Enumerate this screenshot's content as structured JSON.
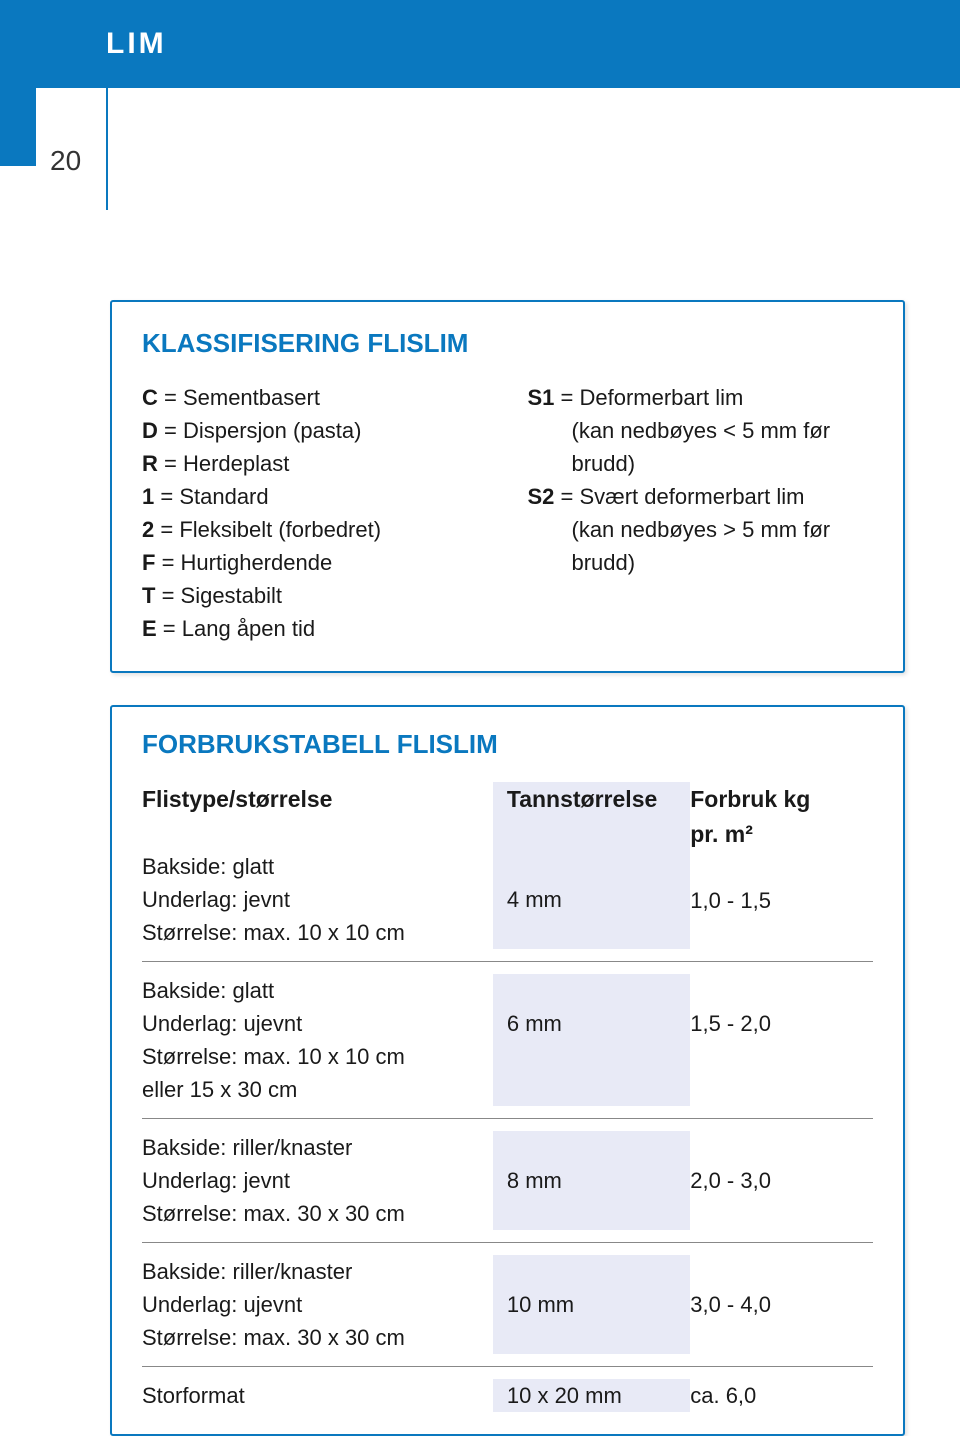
{
  "banner": {
    "title": "LIM"
  },
  "page_number": "20",
  "colors": {
    "accent": "#0a78bf",
    "band": "#e8eaf6",
    "text": "#1a1a1a"
  },
  "box1": {
    "title": "KLASSIFISERING FLISLIM",
    "left": [
      {
        "b": "C",
        "t": " = Sementbasert"
      },
      {
        "b": "D",
        "t": " = Dispersjon (pasta)"
      },
      {
        "b": "R",
        "t": " = Herdeplast"
      },
      {
        "b": "1",
        "t": " = Standard"
      },
      {
        "b": "2",
        "t": " = Fleksibelt (forbedret)"
      },
      {
        "b": "F",
        "t": " = Hurtigherdende"
      },
      {
        "b": "T",
        "t": " = Sigestabilt"
      },
      {
        "b": "E",
        "t": " = Lang åpen tid"
      }
    ],
    "right": [
      {
        "b": "S1",
        "t": " = Deformerbart lim"
      },
      {
        "indent": true,
        "t": "(kan nedbøyes < 5 mm før brudd)"
      },
      {
        "b": "S2",
        "t": " = Svært deformerbart lim"
      },
      {
        "indent": true,
        "t": "(kan nedbøyes > 5 mm før brudd)"
      }
    ]
  },
  "box2": {
    "title": "FORBRUKSTABELL FLISLIM",
    "headers": {
      "c1": "Flistype/størrelse",
      "c2": "Tannstørrelse",
      "c3a": "Forbruk kg",
      "c3b": "pr. m²"
    },
    "rows": [
      {
        "c1_lines": [
          "Bakside: glatt",
          "Underlag: jevnt",
          "Størrelse: max. 10 x 10 cm"
        ],
        "c2": "4 mm",
        "c3": "1,0 - 1,5",
        "header_row": true
      },
      {
        "c1_lines": [
          "Bakside: glatt",
          "Underlag: ujevnt",
          "Størrelse: max. 10 x 10 cm",
          "eller 15 x 30 cm"
        ],
        "c2": "6 mm",
        "c3": "1,5 - 2,0"
      },
      {
        "c1_lines": [
          "Bakside: riller/knaster",
          "Underlag: jevnt",
          "Størrelse: max. 30 x 30 cm"
        ],
        "c2": "8 mm",
        "c3": "2,0 - 3,0"
      },
      {
        "c1_lines": [
          "Bakside: riller/knaster",
          "Underlag: ujevnt",
          "Størrelse: max. 30 x 30 cm"
        ],
        "c2": "10 mm",
        "c3": "3,0 - 4,0"
      },
      {
        "c1_lines": [
          "Storformat"
        ],
        "c2": "10 x 20 mm",
        "c3": "ca. 6,0",
        "single": true
      }
    ]
  }
}
